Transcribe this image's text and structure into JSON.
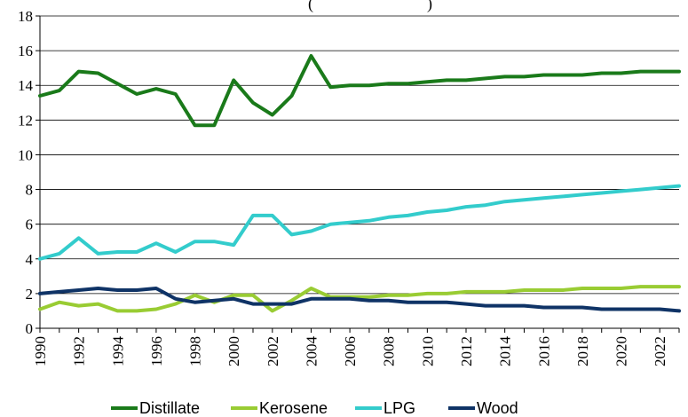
{
  "chart_data": {
    "type": "line",
    "title": "(",
    "title_tail": ")",
    "xlabel": "",
    "ylabel": "",
    "ylim": [
      0,
      18
    ],
    "yticks": [
      0,
      2,
      4,
      6,
      8,
      10,
      12,
      14,
      16,
      18
    ],
    "xlim": [
      1990,
      2023
    ],
    "xticks": [
      "1990",
      "1992",
      "1994",
      "1996",
      "1998",
      "2000",
      "2002",
      "2004",
      "2006",
      "2008",
      "2010",
      "2012",
      "2014",
      "2016",
      "2018",
      "2020",
      "2022"
    ],
    "grid": "horizontal",
    "legend_position": "bottom",
    "x": [
      1990,
      1991,
      1992,
      1993,
      1994,
      1995,
      1996,
      1997,
      1998,
      1999,
      2000,
      2001,
      2002,
      2003,
      2004,
      2005,
      2006,
      2007,
      2008,
      2009,
      2010,
      2011,
      2012,
      2013,
      2014,
      2015,
      2016,
      2017,
      2018,
      2019,
      2020,
      2021,
      2022,
      2023
    ],
    "series": [
      {
        "name": "Distillate",
        "color": "#1a7a1a",
        "values": [
          13.4,
          13.7,
          14.8,
          14.7,
          14.1,
          13.5,
          13.8,
          13.5,
          11.7,
          11.7,
          14.3,
          13.0,
          12.3,
          13.4,
          15.7,
          13.9,
          14.0,
          14.0,
          14.1,
          14.1,
          14.2,
          14.3,
          14.3,
          14.4,
          14.5,
          14.5,
          14.6,
          14.6,
          14.6,
          14.7,
          14.7,
          14.8,
          14.8,
          14.8
        ]
      },
      {
        "name": "Kerosene",
        "color": "#99cc33",
        "values": [
          1.1,
          1.5,
          1.3,
          1.4,
          1.0,
          1.0,
          1.1,
          1.4,
          1.9,
          1.5,
          1.9,
          1.9,
          1.0,
          1.6,
          2.3,
          1.8,
          1.8,
          1.8,
          1.9,
          1.9,
          2.0,
          2.0,
          2.1,
          2.1,
          2.1,
          2.2,
          2.2,
          2.2,
          2.3,
          2.3,
          2.3,
          2.4,
          2.4,
          2.4
        ]
      },
      {
        "name": "LPG",
        "color": "#33cccc",
        "values": [
          4.0,
          4.3,
          5.2,
          4.3,
          4.4,
          4.4,
          4.9,
          4.4,
          5.0,
          5.0,
          4.8,
          6.5,
          6.5,
          5.4,
          5.6,
          6.0,
          6.1,
          6.2,
          6.4,
          6.5,
          6.7,
          6.8,
          7.0,
          7.1,
          7.3,
          7.4,
          7.5,
          7.6,
          7.7,
          7.8,
          7.9,
          8.0,
          8.1,
          8.2
        ]
      },
      {
        "name": "Wood",
        "color": "#0f3366",
        "values": [
          2.0,
          2.1,
          2.2,
          2.3,
          2.2,
          2.2,
          2.3,
          1.7,
          1.5,
          1.6,
          1.7,
          1.4,
          1.4,
          1.4,
          1.7,
          1.7,
          1.7,
          1.6,
          1.6,
          1.5,
          1.5,
          1.5,
          1.4,
          1.3,
          1.3,
          1.3,
          1.2,
          1.2,
          1.2,
          1.1,
          1.1,
          1.1,
          1.1,
          1.0
        ]
      }
    ]
  }
}
